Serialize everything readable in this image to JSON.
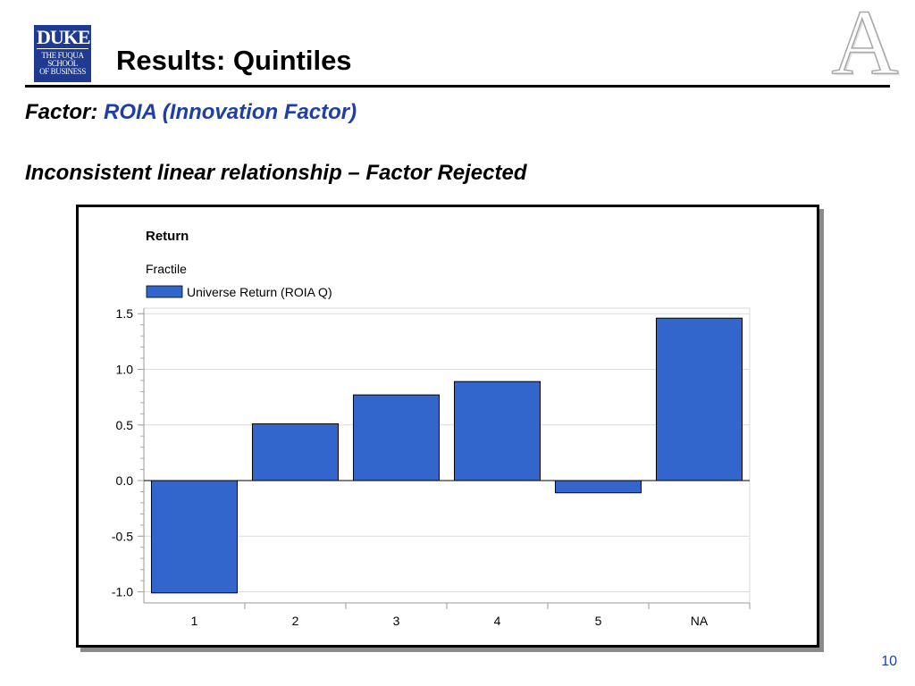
{
  "logo": {
    "top": "DUKE",
    "bottom": "THE FUQUA\nSCHOOL\nOF BUSINESS"
  },
  "slide": {
    "title": "Results:  Quintiles",
    "factor_label": "Factor:",
    "factor_value": "ROIA (Innovation Factor)",
    "subheading": "Inconsistent linear relationship – Factor Rejected",
    "watermark": "A",
    "page_number": "10"
  },
  "colors": {
    "bar": "#3366cc",
    "accent": "#1f3fa8",
    "logo": "#1f3a93"
  },
  "chart_data": {
    "type": "bar",
    "title": "Return",
    "subtitle": "Fractile",
    "categories": [
      "1",
      "2",
      "3",
      "4",
      "5",
      "NA"
    ],
    "series": [
      {
        "name": "Universe Return (ROIA Q)",
        "values": [
          -1.01,
          0.51,
          0.77,
          0.89,
          -0.11,
          1.46
        ]
      }
    ],
    "ylim": [
      -1.1,
      1.55
    ],
    "yticks": [
      "1.5",
      "1.0",
      "0.5",
      "0.0",
      "-0.5",
      "-1.0"
    ],
    "grid": true,
    "legend": "top-left"
  }
}
